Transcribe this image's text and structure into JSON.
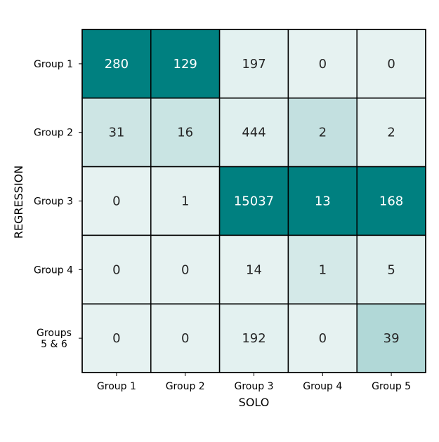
{
  "chart_data": {
    "type": "heatmap",
    "title": "",
    "xlabel": "SOLO",
    "ylabel": "REGRESSION",
    "x_categories": [
      "Group 1",
      "Group 2",
      "Group 3",
      "Group 4",
      "Group 5"
    ],
    "y_categories": [
      [
        "Group 1"
      ],
      [
        "Group 2"
      ],
      [
        "Group 3"
      ],
      [
        "Group 4"
      ],
      [
        "Groups",
        "5 & 6"
      ]
    ],
    "values": [
      [
        280,
        129,
        197,
        0,
        0
      ],
      [
        31,
        16,
        444,
        2,
        2
      ],
      [
        0,
        1,
        15037,
        13,
        168
      ],
      [
        0,
        0,
        14,
        1,
        5
      ],
      [
        0,
        0,
        192,
        0,
        39
      ]
    ],
    "colormap": {
      "low": "#e6f2f1",
      "high": "#008080"
    },
    "text_colors": {
      "dark": "#262626",
      "light": "#ffffff"
    },
    "grid": true,
    "legend": "none"
  }
}
